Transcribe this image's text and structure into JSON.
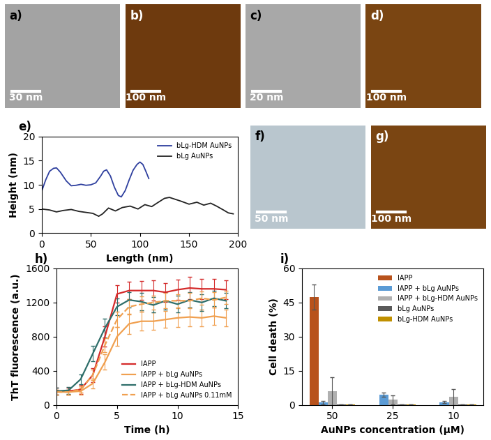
{
  "chart_data": [
    {
      "type": "image",
      "title": "a)",
      "annotations": [
        "30 nm"
      ],
      "color": "#a3a3a3"
    },
    {
      "type": "image",
      "title": "b)",
      "annotations": [
        "100 nm"
      ],
      "color": "#6e3a0e"
    },
    {
      "type": "image",
      "title": "c)",
      "annotations": [
        "20 nm"
      ],
      "color": "#a8a8a8"
    },
    {
      "type": "image",
      "title": "d)",
      "annotations": [
        "100 nm"
      ],
      "color": "#7a4512"
    },
    {
      "type": "line",
      "title": "e)",
      "x_label": "Length (nm)",
      "y_label": "Height (nm)",
      "xlim": [
        0,
        200
      ],
      "xticks": [
        0,
        50,
        100,
        150,
        200
      ],
      "ylim": [
        0,
        20
      ],
      "yticks": [
        0,
        5,
        10,
        15,
        20
      ],
      "legend": "upper right",
      "series": [
        {
          "name": "bLg-HDM AuNPs",
          "color": "#2e3f9e",
          "line_style": "solid",
          "x": [
            0,
            4,
            8,
            12,
            15,
            19,
            25,
            30,
            35,
            40,
            45,
            50,
            55,
            60,
            63,
            66,
            70,
            74,
            78,
            81,
            85,
            89,
            93,
            97,
            100,
            103,
            106,
            109
          ],
          "values": [
            8.7,
            11.0,
            12.8,
            13.4,
            13.5,
            12.6,
            10.8,
            9.8,
            9.9,
            10.1,
            9.9,
            10.0,
            10.4,
            11.8,
            12.8,
            13.1,
            11.8,
            9.5,
            7.8,
            7.5,
            8.8,
            11.0,
            13.0,
            14.2,
            14.7,
            14.2,
            12.8,
            11.3
          ]
        },
        {
          "name": "bLg AuNPs",
          "color": "#222222",
          "line_style": "solid",
          "x": [
            0,
            8,
            15,
            22,
            30,
            38,
            45,
            52,
            58,
            62,
            68,
            75,
            82,
            90,
            98,
            105,
            112,
            118,
            125,
            130,
            136,
            142,
            150,
            158,
            165,
            172,
            178,
            185,
            190,
            195
          ],
          "values": [
            5.0,
            4.8,
            4.4,
            4.7,
            4.9,
            4.5,
            4.3,
            4.1,
            3.5,
            4.0,
            5.2,
            4.6,
            5.3,
            5.6,
            5.0,
            5.9,
            5.5,
            6.3,
            7.2,
            7.4,
            7.0,
            6.6,
            6.0,
            6.4,
            5.8,
            6.2,
            5.6,
            4.8,
            4.2,
            4.0
          ]
        }
      ]
    },
    {
      "type": "image",
      "title": "f)",
      "annotations": [
        "50 nm"
      ],
      "color": "#b9c6ce"
    },
    {
      "type": "image",
      "title": "g)",
      "annotations": [
        "100 nm"
      ],
      "color": "#7a4512"
    },
    {
      "type": "line",
      "title": "h)",
      "x_label": "Time (h)",
      "y_label": "ThT fluorescence (a.u.)",
      "xlim": [
        0,
        15
      ],
      "xticks": [
        0,
        5,
        10,
        15
      ],
      "ylim": [
        0,
        1600
      ],
      "yticks": [
        0,
        400,
        800,
        1200,
        1600
      ],
      "legend": "lower right",
      "x": [
        0,
        1,
        2,
        3,
        4,
        5,
        6,
        7,
        8,
        9,
        10,
        11,
        12,
        13,
        14
      ],
      "series": [
        {
          "name": "IAPP",
          "color": "#d42a2a",
          "line_style": "solid",
          "values": [
            160,
            160,
            180,
            350,
            800,
            1300,
            1340,
            1340,
            1340,
            1320,
            1350,
            1370,
            1360,
            1360,
            1350
          ],
          "error": [
            40,
            40,
            50,
            80,
            120,
            100,
            100,
            110,
            120,
            110,
            120,
            130,
            120,
            120,
            110
          ]
        },
        {
          "name": "IAPP + bLg AuNPs",
          "color": "#f0a050",
          "line_style": "solid",
          "values": [
            150,
            150,
            160,
            250,
            500,
            800,
            950,
            980,
            980,
            1000,
            1020,
            1030,
            1020,
            1040,
            1020
          ],
          "error": [
            30,
            30,
            40,
            60,
            90,
            110,
            120,
            110,
            100,
            100,
            110,
            110,
            100,
            100,
            100
          ]
        },
        {
          "name": "IAPP + bLg-HDM AuNPs",
          "color": "#2e6e6a",
          "line_style": "solid",
          "values": [
            160,
            170,
            300,
            600,
            900,
            1150,
            1230,
            1210,
            1170,
            1220,
            1180,
            1230,
            1200,
            1250,
            1220
          ],
          "error": [
            40,
            40,
            60,
            90,
            110,
            100,
            90,
            100,
            90,
            100,
            100,
            90,
            100,
            90,
            90
          ]
        },
        {
          "name": "IAPP + bLg AuNPs 0.11mM",
          "color": "#f0a050",
          "line_style": "dashed",
          "values": [
            150,
            150,
            180,
            350,
            700,
            1000,
            1150,
            1180,
            1200,
            1220,
            1220,
            1220,
            1250,
            1230,
            1260
          ],
          "error": [
            30,
            30,
            40,
            60,
            80,
            90,
            90,
            90,
            80,
            90,
            80,
            90,
            80,
            90,
            80
          ]
        }
      ]
    },
    {
      "type": "bar",
      "title": "i)",
      "x_label": "AuNPs concentration (μM)",
      "y_label": "Cell death (%)",
      "categories": [
        "50",
        "25",
        "10"
      ],
      "ylim": [
        0,
        60
      ],
      "yticks": [
        0,
        15,
        30,
        45,
        60
      ],
      "legend": "upper right",
      "series": [
        {
          "name": "IAPP",
          "color": "#b8521c",
          "values": [
            47.5,
            null,
            null
          ],
          "error": [
            5.5,
            null,
            null
          ]
        },
        {
          "name": "IAPP + bLg AuNPs",
          "color": "#5b9bd5",
          "values": [
            1.0,
            4.5,
            1.2
          ],
          "error": [
            0.7,
            1.0,
            0.5
          ]
        },
        {
          "name": "IAPP + bLg-HDM AuNPs",
          "color": "#b0b0b0",
          "values": [
            6.0,
            2.2,
            3.5
          ],
          "error": [
            6.0,
            2.0,
            3.5
          ]
        },
        {
          "name": "bLg AuNPs",
          "color": "#5a5a5a",
          "values": [
            0.2,
            0.2,
            0.1
          ],
          "error": [
            null,
            null,
            null
          ]
        },
        {
          "name": "bLg-HDM AuNPs",
          "color": "#c09000",
          "values": [
            0.2,
            0.1,
            0.1
          ],
          "error": [
            null,
            null,
            null
          ]
        }
      ]
    }
  ]
}
